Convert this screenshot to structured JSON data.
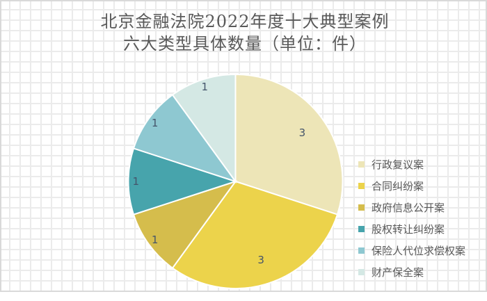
{
  "title": {
    "line1": "北京金融法院2022年度十大典型案例",
    "line2": "六大类型具体数量（单位：件）"
  },
  "chart_data": {
    "type": "pie",
    "title": "北京金融法院2022年度十大典型案例六大类型具体数量（单位：件）",
    "categories": [
      "行政复议案",
      "合同纠纷案",
      "政府信息公开案",
      "股权转让纠纷案",
      "保险人代位求偿权案",
      "财产保全案"
    ],
    "values": [
      3,
      3,
      1,
      1,
      1,
      1
    ],
    "colors": [
      "#ede5b7",
      "#ecd34b",
      "#d5bd4c",
      "#47a4ac",
      "#8ec8d1",
      "#d4e8e4"
    ],
    "start_angle": "12 o'clock, clockwise",
    "data_labels": true,
    "legend_position": "right"
  },
  "legend": {
    "items": [
      {
        "label": "行政复议案",
        "color": "#ede5b7"
      },
      {
        "label": "合同纠纷案",
        "color": "#ecd34b"
      },
      {
        "label": "政府信息公开案",
        "color": "#d5bd4c"
      },
      {
        "label": "股权转让纠纷案",
        "color": "#47a4ac"
      },
      {
        "label": "保险人代位求偿权案",
        "color": "#8ec8d1"
      },
      {
        "label": "财产保全案",
        "color": "#d4e8e4"
      }
    ]
  },
  "labels": [
    "3",
    "3",
    "1",
    "1",
    "1",
    "1"
  ]
}
